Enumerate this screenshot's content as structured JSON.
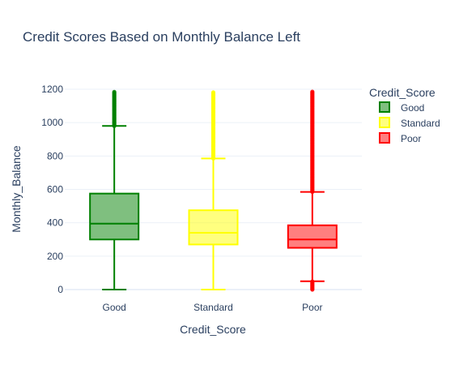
{
  "chart_data": {
    "type": "box",
    "title": "Credit Scores Based on Monthly Balance Left",
    "xlabel": "Credit_Score",
    "ylabel": "Monthly_Balance",
    "ylim": [
      0,
      1200
    ],
    "yticks": [
      0,
      200,
      400,
      600,
      800,
      1000,
      1200
    ],
    "grid": "horizontal",
    "legend_title": "Credit_Score",
    "legend_position": "top-right",
    "series": [
      {
        "name": "Good",
        "color": "#008000",
        "fill": "rgba(0,128,0,0.5)",
        "min": 0,
        "q1": 300,
        "median": 395,
        "q3": 575,
        "whisker_high": 980,
        "outliers_low": [],
        "outliers_high_range": [
          980,
          1185
        ]
      },
      {
        "name": "Standard",
        "color": "#ffff00",
        "fill": "rgba(255,255,0,0.5)",
        "min": 0,
        "q1": 270,
        "median": 340,
        "q3": 475,
        "whisker_high": 785,
        "outliers_low": [],
        "outliers_high_range": [
          785,
          1185
        ]
      },
      {
        "name": "Poor",
        "color": "#ff0000",
        "fill": "rgba(255,0,0,0.5)",
        "min": 50,
        "q1": 250,
        "median": 300,
        "q3": 385,
        "whisker_high": 585,
        "outliers_low_range": [
          0,
          50
        ],
        "outliers_high_range": [
          585,
          1185
        ]
      }
    ]
  }
}
